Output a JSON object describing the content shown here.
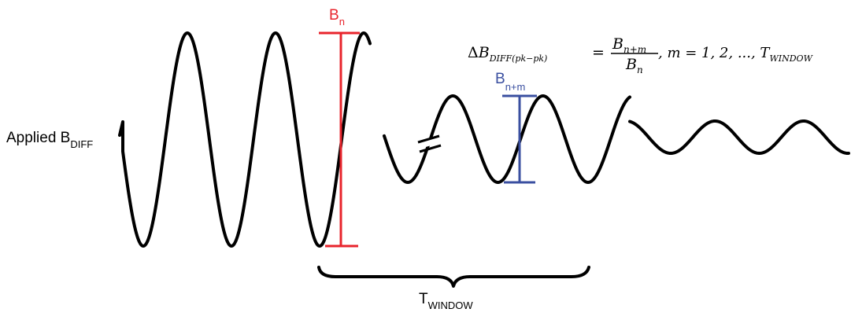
{
  "labels": {
    "applied": {
      "main": "Applied B",
      "sub": "DIFF"
    },
    "bn": {
      "main": "B",
      "sub": "n"
    },
    "bnm": {
      "main": "B",
      "sub": "n+m"
    },
    "twindow": {
      "main": "T",
      "sub": "WINDOW"
    }
  },
  "equation": {
    "delta": "Δ",
    "lhs_main": "B",
    "lhs_sub": "DIFF(pk−pk)",
    "equals": "=",
    "num_main": "B",
    "num_sub": "n+m",
    "den_main": "B",
    "den_sub": "n",
    "tail_a": ", m = 1, 2, ..., T",
    "tail_sub": "WINDOW"
  },
  "colors": {
    "wave": "#000000",
    "bn_marker": "#e8242c",
    "bnm_marker": "#3a4fa0",
    "text": "#000000"
  }
}
